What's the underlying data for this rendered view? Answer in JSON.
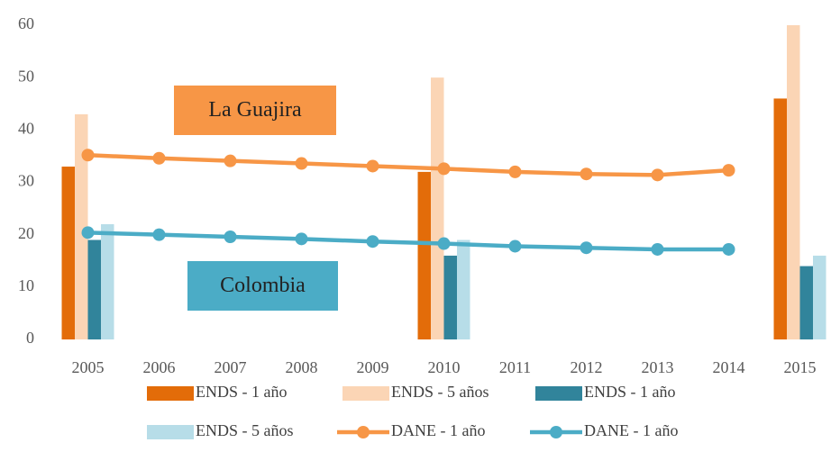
{
  "chart_data": {
    "type": "bar",
    "categories": [
      "2005",
      "2006",
      "2007",
      "2008",
      "2009",
      "2010",
      "2011",
      "2012",
      "2013",
      "2014",
      "2015"
    ],
    "series": [
      {
        "name": "ENDS - 1 año",
        "type": "bar",
        "color": "#E36C09",
        "values": [
          33,
          null,
          null,
          null,
          null,
          32,
          null,
          null,
          null,
          null,
          46
        ]
      },
      {
        "name": "ENDS - 5 años",
        "type": "bar",
        "color": "#FBD5B5",
        "values": [
          43,
          null,
          null,
          null,
          null,
          50,
          null,
          null,
          null,
          null,
          60
        ]
      },
      {
        "name": "ENDS - 1 año",
        "type": "bar",
        "color": "#31849B",
        "values": [
          19,
          null,
          null,
          null,
          null,
          16,
          null,
          null,
          null,
          null,
          14
        ]
      },
      {
        "name": "ENDS - 5 años",
        "type": "bar",
        "color": "#B7DDE8",
        "values": [
          22,
          null,
          null,
          null,
          null,
          19,
          null,
          null,
          null,
          null,
          16
        ]
      },
      {
        "name": "DANE - 1 año",
        "type": "line",
        "color": "#F79646",
        "values": [
          35.2,
          34.6,
          34.1,
          33.6,
          33.1,
          32.6,
          32.0,
          31.6,
          31.4,
          32.3,
          null
        ]
      },
      {
        "name": "DANE - 1 año",
        "type": "line",
        "color": "#4BACC6",
        "values": [
          20.4,
          20.0,
          19.6,
          19.2,
          18.7,
          18.3,
          17.8,
          17.5,
          17.2,
          17.2,
          null
        ]
      }
    ],
    "annotations": [
      {
        "text": "La Guajira",
        "color": "#F79646"
      },
      {
        "text": "Colombia",
        "color": "#4BACC6"
      }
    ],
    "ylim": [
      0,
      60
    ],
    "yticks": [
      0,
      10,
      20,
      30,
      40,
      50,
      60
    ],
    "grid": false
  }
}
